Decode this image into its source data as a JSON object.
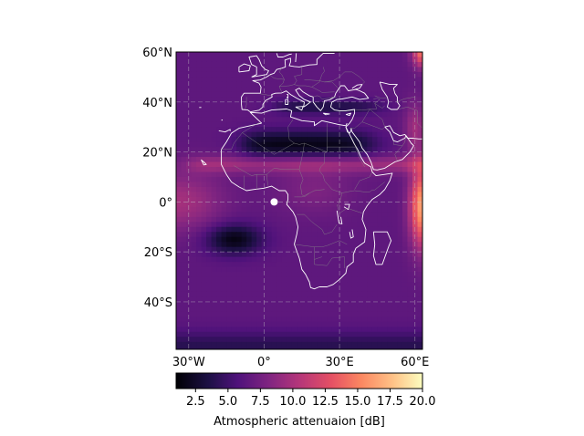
{
  "chart_data": {
    "type": "heatmap",
    "title": "",
    "projection": "equirectangular",
    "lon_range": [
      -35,
      63
    ],
    "lat_range": [
      -59,
      60
    ],
    "x_ticks": [
      {
        "value": -30,
        "label": "30°W"
      },
      {
        "value": 0,
        "label": "0°"
      },
      {
        "value": 30,
        "label": "30°E"
      },
      {
        "value": 60,
        "label": "60°E"
      }
    ],
    "y_ticks": [
      {
        "value": 60,
        "label": "60°N"
      },
      {
        "value": 40,
        "label": "40°N"
      },
      {
        "value": 20,
        "label": "20°N"
      },
      {
        "value": 0,
        "label": "0°"
      },
      {
        "value": -20,
        "label": "20°S"
      },
      {
        "value": -40,
        "label": "40°S"
      }
    ],
    "grid": true,
    "colormap": "magma",
    "marker": {
      "lon": 4,
      "lat": 0,
      "color": "#ffffff"
    },
    "colorbar": {
      "label": "Atmospheric attenuaion [dB]",
      "range": [
        1,
        20
      ],
      "ticks": [
        2.5,
        5.0,
        7.5,
        10.0,
        12.5,
        15.0,
        17.5,
        20.0
      ],
      "tick_labels": [
        "2.5",
        "5.0",
        "7.5",
        "10.0",
        "12.5",
        "15.0",
        "17.5",
        "20.0"
      ]
    },
    "coastline_color": "#ffffff",
    "border_color": "#888888"
  }
}
